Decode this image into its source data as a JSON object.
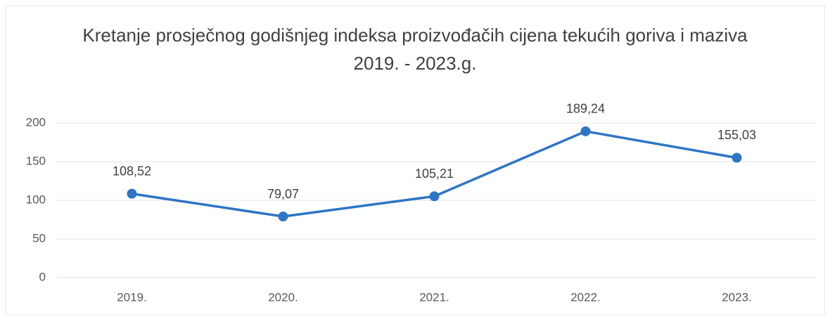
{
  "chart_data": {
    "type": "line",
    "title": "Kretanje prosječnog godišnjeg indeksa proizvođačih cijena tekućih goriva i maziva 2019. - 2023.g.",
    "categories": [
      "2019.",
      "2020.",
      "2021.",
      "2022.",
      "2023."
    ],
    "values": [
      108.52,
      79.07,
      105.21,
      189.24,
      155.03
    ],
    "value_labels": [
      "108,52",
      "79,07",
      "105,21",
      "189,24",
      "155,03"
    ],
    "color": "#2e75c5",
    "ylim": [
      0,
      200
    ],
    "yticks": [
      0,
      50,
      100,
      150,
      200
    ],
    "grid": true
  }
}
